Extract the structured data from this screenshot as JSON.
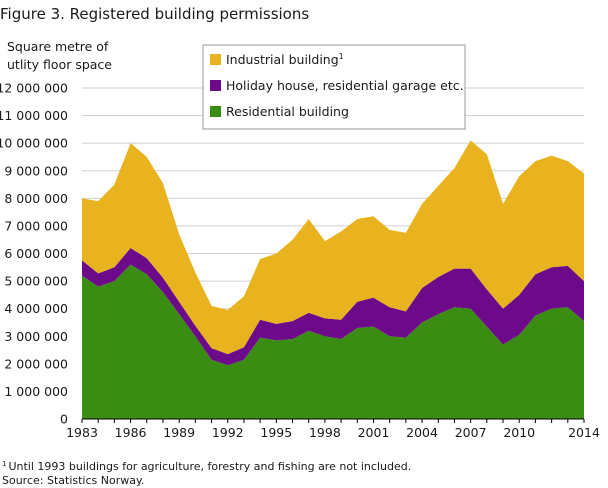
{
  "figure_title": "Figure 3. Registered building permissions",
  "ylabel_lines": [
    "Square metre of",
    "utlity floor space"
  ],
  "footnote": {
    "marker": "1",
    "text": "Until 1993 buildings for agriculture, forestry and fishing are not included.",
    "source": "Source: Statistics Norway."
  },
  "colors": {
    "industrial": "#e9b31f",
    "holiday": "#6c0a8a",
    "residential": "#3a8c12",
    "grid": "#d0d0d0",
    "axis": "#000000"
  },
  "chart_data": {
    "type": "area",
    "stacked": true,
    "title": "Figure 3. Registered building permissions",
    "ylabel": "Square metre of utlity floor space",
    "xlabel": "",
    "ylim": [
      0,
      12000000
    ],
    "yticks": [
      0,
      1000000,
      2000000,
      3000000,
      4000000,
      5000000,
      6000000,
      7000000,
      8000000,
      9000000,
      10000000,
      11000000,
      12000000
    ],
    "ytick_labels": [
      "0",
      "1 000 000",
      "2 000 000",
      "3 000 000",
      "4 000 000",
      "5 000 000",
      "6 000 000",
      "7 000 000",
      "8 000 000",
      "9 000 000",
      "10 000 000",
      "11 000 000",
      "12 000 000"
    ],
    "xticks": [
      1983,
      1986,
      1989,
      1992,
      1995,
      1998,
      2001,
      2004,
      2007,
      2010,
      2014
    ],
    "legend_position": "top",
    "grid": true,
    "x": [
      1983,
      1984,
      1985,
      1986,
      1987,
      1988,
      1989,
      1990,
      1991,
      1992,
      1993,
      1994,
      1995,
      1996,
      1997,
      1998,
      1999,
      2000,
      2001,
      2002,
      2003,
      2004,
      2005,
      2006,
      2007,
      2008,
      2009,
      2010,
      2011,
      2012,
      2013,
      2014
    ],
    "series": [
      {
        "name": "Residential building",
        "values": [
          5200000,
          4800000,
          5000000,
          5600000,
          5250000,
          4600000,
          3800000,
          3000000,
          2150000,
          1950000,
          2150000,
          2950000,
          2850000,
          2900000,
          3200000,
          3000000,
          2900000,
          3300000,
          3350000,
          3000000,
          2950000,
          3500000,
          3800000,
          4050000,
          4000000,
          3350000,
          2700000,
          3050000,
          3750000,
          4000000,
          4050000,
          3550000
        ]
      },
      {
        "name": "Holiday house, residential garage etc.",
        "values": [
          550000,
          480000,
          500000,
          600000,
          580000,
          520000,
          450000,
          380000,
          420000,
          400000,
          450000,
          650000,
          600000,
          650000,
          650000,
          650000,
          700000,
          950000,
          1050000,
          1050000,
          950000,
          1250000,
          1350000,
          1400000,
          1450000,
          1350000,
          1300000,
          1450000,
          1500000,
          1500000,
          1500000,
          1450000
        ]
      },
      {
        "name": "Industrial building",
        "legend_superscript": "1",
        "values": [
          2250000,
          2620000,
          3000000,
          3800000,
          3670000,
          3430000,
          2450000,
          1930000,
          1530000,
          1600000,
          1850000,
          2200000,
          2550000,
          2950000,
          3400000,
          2800000,
          3200000,
          3000000,
          2950000,
          2800000,
          2850000,
          3050000,
          3300000,
          3650000,
          4650000,
          4900000,
          3800000,
          4300000,
          4100000,
          4050000,
          3800000,
          3900000
        ]
      }
    ],
    "legend": [
      {
        "name": "Industrial building",
        "superscript": "1",
        "color": "#e9b31f"
      },
      {
        "name": "Holiday house, residential garage etc.",
        "color": "#6c0a8a"
      },
      {
        "name": "Residential building",
        "color": "#3a8c12"
      }
    ]
  }
}
